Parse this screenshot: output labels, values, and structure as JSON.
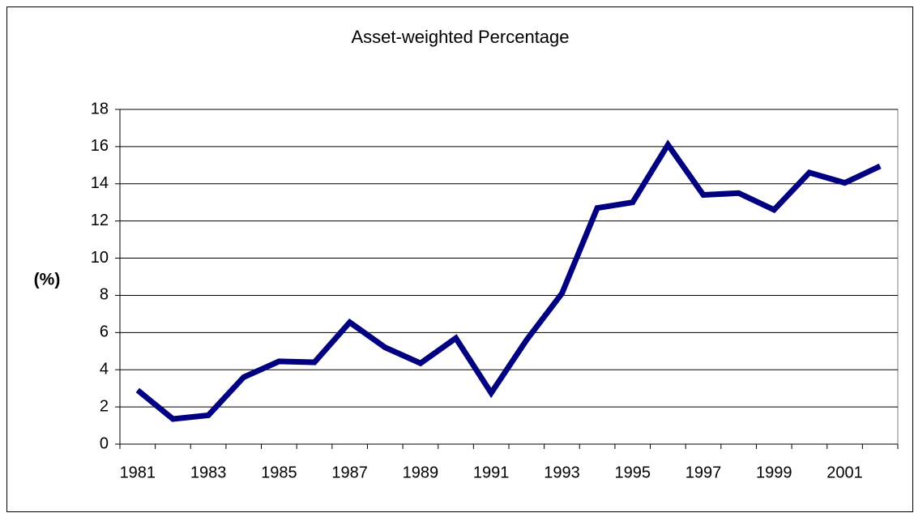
{
  "chart_data": {
    "type": "line",
    "title": "Asset-weighted Percentage",
    "y_label": "(%)",
    "categories": [
      "1981",
      null,
      "1983",
      null,
      "1985",
      null,
      "1987",
      null,
      "1989",
      null,
      "1991",
      null,
      "1993",
      null,
      "1995",
      null,
      "1997",
      null,
      "1999",
      null,
      "2001",
      null
    ],
    "series": [
      {
        "color": "#000080",
        "values": [
          2.9,
          1.35,
          1.55,
          3.6,
          4.45,
          4.4,
          6.55,
          5.2,
          4.35,
          5.7,
          2.75,
          5.6,
          8.1,
          12.7,
          13.0,
          16.1,
          13.4,
          13.5,
          12.6,
          14.6,
          14.05,
          14.95
        ]
      }
    ],
    "ylim": [
      0,
      18
    ],
    "yticks": [
      0,
      2,
      4,
      6,
      8,
      10,
      12,
      14,
      16,
      18
    ],
    "grid": true
  }
}
